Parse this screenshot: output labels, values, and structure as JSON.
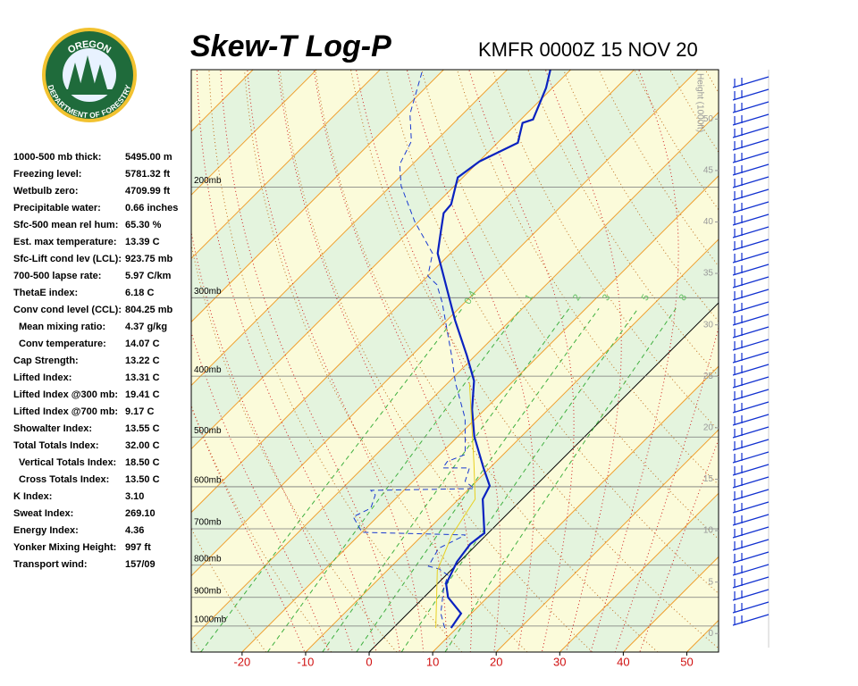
{
  "logo": {
    "top": "OREGON",
    "bottom": "DEPARTMENT OF FORESTRY"
  },
  "stats": [
    {
      "label": "1000-500 mb thick:",
      "value": "5495.00 m"
    },
    {
      "label": "Freezing level:",
      "value": "5781.32 ft"
    },
    {
      "label": "Wetbulb zero:",
      "value": "4709.99 ft"
    },
    {
      "label": "Precipitable water:",
      "value": "0.66 inches"
    },
    {
      "label": "Sfc-500 mean rel hum:",
      "value": "65.30 %"
    },
    {
      "label": "Est. max temperature:",
      "value": "13.39 C"
    },
    {
      "label": "Sfc-Lift cond lev (LCL):",
      "value": "923.75 mb"
    },
    {
      "label": "700-500 lapse rate:",
      "value": "5.97 C/km"
    },
    {
      "label": "ThetaE index:",
      "value": "6.18 C"
    },
    {
      "label": "Conv cond level (CCL):",
      "value": "804.25 mb"
    },
    {
      "label": "Mean mixing ratio:",
      "value": "4.37 g/kg"
    },
    {
      "label": "Conv temperature:",
      "value": "14.07 C"
    },
    {
      "label": "Cap Strength:",
      "value": "13.22 C"
    },
    {
      "label": "Lifted Index:",
      "value": "13.31 C"
    },
    {
      "label": "Lifted Index @300 mb:",
      "value": "19.41 C"
    },
    {
      "label": "Lifted Index @700 mb:",
      "value": "9.17 C"
    },
    {
      "label": "Showalter Index:",
      "value": "13.55 C"
    },
    {
      "label": "Total Totals Index:",
      "value": "32.00 C"
    },
    {
      "label": "Vertical Totals Index:",
      "value": "18.50 C"
    },
    {
      "label": "Cross Totals Index:",
      "value": "13.50 C"
    },
    {
      "label": "K Index:",
      "value": "3.10"
    },
    {
      "label": "Sweat Index:",
      "value": "269.10"
    },
    {
      "label": "Energy Index:",
      "value": "4.36"
    },
    {
      "label": "Yonker Mixing Height:",
      "value": "997 ft"
    },
    {
      "label": "Transport wind:",
      "value": "157/09"
    }
  ],
  "chart_data": {
    "type": "skewt",
    "title": "Skew-T Log-P",
    "subtitle": "KMFR 0000Z 15 NOV 20",
    "xlim": [
      -28,
      55
    ],
    "xticks": [
      -20,
      -10,
      0,
      10,
      20,
      30,
      40,
      50
    ],
    "ylim": [
      1100,
      130
    ],
    "log_y": true,
    "yticks": [
      {
        "value": 200,
        "label": "200mb"
      },
      {
        "value": 300,
        "label": "300mb"
      },
      {
        "value": 400,
        "label": "400mb"
      },
      {
        "value": 500,
        "label": "500mb"
      },
      {
        "value": 600,
        "label": "600mb"
      },
      {
        "value": 700,
        "label": "700mb"
      },
      {
        "value": 800,
        "label": "800mb"
      },
      {
        "value": 900,
        "label": "900mb"
      },
      {
        "value": 1000,
        "label": "1000mb"
      }
    ],
    "y2label": "Height (1000ft)",
    "y2lim": [
      -1.8,
      54.8
    ],
    "y2ticks": [
      0,
      5,
      10,
      15,
      20,
      25,
      30,
      35,
      40,
      45,
      50
    ],
    "mixing_ratio_lines": [
      0.4,
      1,
      2,
      3,
      5,
      8
    ],
    "series": [
      {
        "color": "#0a22c0",
        "width": 2.2,
        "dashed": false,
        "pressure": [
          1007,
          955,
          900,
          857,
          790,
          740,
          711,
          628,
          598,
          560,
          499,
          452,
          407,
          371,
          326,
          268,
          255,
          235,
          220,
          213,
          193,
          182,
          170,
          158,
          156,
          139,
          130
        ],
        "values": [
          9.1,
          8.4,
          3.8,
          1.4,
          -0.4,
          -1.1,
          -0.6,
          -6.2,
          -7.2,
          -11.0,
          -17.4,
          -22.0,
          -26.2,
          -31.3,
          -38.7,
          -49.3,
          -52.0,
          -55.0,
          -57.4,
          -57.6,
          -60.8,
          -59.9,
          -56.8,
          -59.2,
          -58.1,
          -61.0,
          -63.2
        ]
      },
      {
        "color": "#1a3ad0",
        "width": 1,
        "dashed": true,
        "pressure": [
          1007,
          955,
          871,
          830,
          811,
          803,
          752,
          716,
          709,
          670,
          649,
          618,
          608,
          604,
          588,
          560,
          560,
          547,
          533,
          467,
          410,
          371,
          305,
          286,
          277,
          255,
          227,
          199,
          184,
          169,
          153,
          130
        ],
        "values": [
          8.1,
          5.2,
          1.7,
          0.3,
          -2.1,
          -4.2,
          -5.4,
          -3.3,
          -20.0,
          -23.8,
          -22.4,
          -23.8,
          -25.2,
          -9.2,
          -11.8,
          -13.2,
          -17.4,
          -17.7,
          -16.0,
          -21.7,
          -28.8,
          -33.7,
          -43.6,
          -47.2,
          -50.0,
          -52.8,
          -60.6,
          -68.4,
          -72.0,
          -73.8,
          -78.3,
          -83.3
        ]
      },
      {
        "color": "#e8d020",
        "width": 1,
        "dashed": false,
        "pressure": [
          1007,
          816,
          716,
          628,
          551,
          410
        ],
        "values": [
          6.7,
          -2.1,
          -5.4,
          -7.4,
          -13.2,
          -26.6
        ]
      }
    ]
  }
}
